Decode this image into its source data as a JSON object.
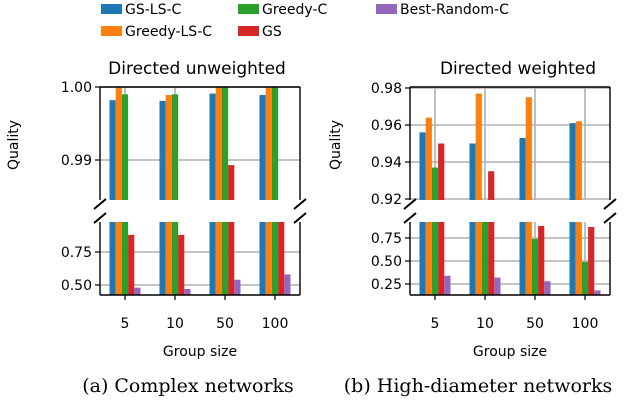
{
  "legend": {
    "items": [
      {
        "label": "GS-LS-C",
        "color": "#1f77b4"
      },
      {
        "label": "Greedy-LS-C",
        "color": "#ff7f0e"
      },
      {
        "label": "Greedy-C",
        "color": "#2ca02c"
      },
      {
        "label": "GS",
        "color": "#d62728"
      },
      {
        "label": "Best-Random-C",
        "color": "#9467bd"
      }
    ]
  },
  "chart_data": [
    {
      "type": "bar",
      "title": "Directed unweighted",
      "caption": "(a) Complex networks",
      "xlabel": "Group size",
      "ylabel": "Quality",
      "categories": [
        "5",
        "10",
        "50",
        "100"
      ],
      "broken_y_axis": true,
      "upper_ylim": [
        0.988,
        1.0
      ],
      "upper_ticks": [
        "0.99",
        "1.00"
      ],
      "lower_ylim": [
        0.4,
        0.9
      ],
      "lower_ticks": [
        "0.50",
        "0.75"
      ],
      "grid": true,
      "series": [
        {
          "name": "GS-LS-C",
          "color": "#1f77b4",
          "values": [
            0.9982,
            0.9981,
            0.9991,
            0.9989
          ]
        },
        {
          "name": "Greedy-LS-C",
          "color": "#ff7f0e",
          "values": [
            1.0,
            0.9989,
            1.0,
            1.0
          ]
        },
        {
          "name": "Greedy-C",
          "color": "#2ca02c",
          "values": [
            0.999,
            0.999,
            1.0,
            1.0
          ]
        },
        {
          "name": "GS",
          "color": "#d62728",
          "values": [
            0.88,
            0.88,
            0.9893,
            0.9862
          ]
        },
        {
          "name": "Best-Random-C",
          "color": "#9467bd",
          "values": [
            0.48,
            0.47,
            0.54,
            0.58
          ]
        }
      ]
    },
    {
      "type": "bar",
      "title": "Directed weighted",
      "caption": "(b) High-diameter networks",
      "xlabel": "Group size",
      "ylabel": "Quality",
      "categories": [
        "5",
        "10",
        "50",
        "100"
      ],
      "broken_y_axis": true,
      "upper_ylim": [
        0.92,
        0.98
      ],
      "upper_ticks": [
        "0.92",
        "0.94",
        "0.96",
        "0.98"
      ],
      "lower_ylim": [
        0.12,
        0.9
      ],
      "lower_ticks": [
        "0.25",
        "0.50",
        "0.75"
      ],
      "grid": true,
      "series": [
        {
          "name": "GS-LS-C",
          "color": "#1f77b4",
          "values": [
            0.956,
            0.95,
            0.953,
            0.961
          ]
        },
        {
          "name": "Greedy-LS-C",
          "color": "#ff7f0e",
          "values": [
            0.964,
            0.977,
            0.975,
            0.962
          ]
        },
        {
          "name": "Greedy-C",
          "color": "#2ca02c",
          "values": [
            0.937,
            0.9,
            0.74,
            0.49
          ]
        },
        {
          "name": "GS",
          "color": "#d62728",
          "values": [
            0.95,
            0.935,
            0.88,
            0.87
          ]
        },
        {
          "name": "Best-Random-C",
          "color": "#9467bd",
          "values": [
            0.34,
            0.32,
            0.28,
            0.18
          ]
        }
      ]
    }
  ]
}
